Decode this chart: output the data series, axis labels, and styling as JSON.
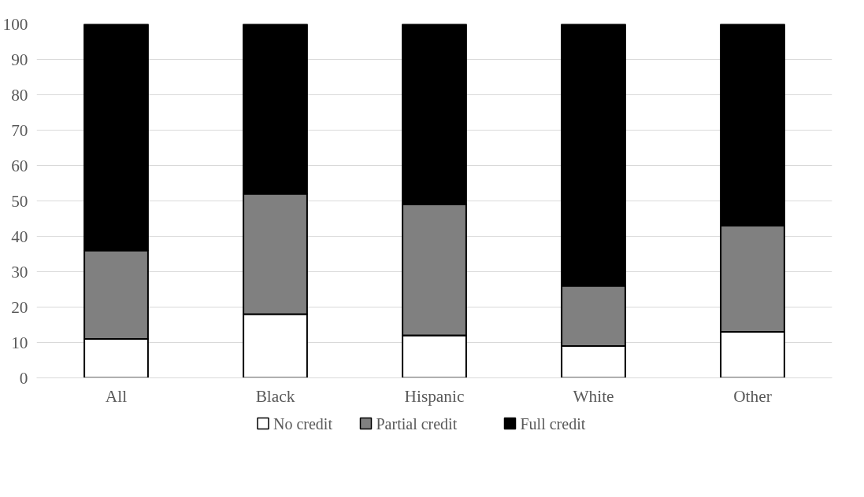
{
  "chart_data": {
    "type": "bar",
    "stacked": true,
    "categories": [
      "All",
      "Black",
      "Hispanic",
      "White",
      "Other"
    ],
    "series": [
      {
        "name": "No credit",
        "color": "#ffffff",
        "values": [
          11,
          18,
          12,
          9,
          13
        ]
      },
      {
        "name": "Partial credit",
        "color": "#808080",
        "values": [
          25,
          34,
          37,
          17,
          30
        ]
      },
      {
        "name": "Full credit",
        "color": "#000000",
        "values": [
          64,
          48,
          51,
          74,
          57
        ]
      }
    ],
    "ylim": [
      0,
      100
    ],
    "yticks": [
      0,
      10,
      20,
      30,
      40,
      50,
      60,
      70,
      80,
      90,
      100
    ],
    "grid": "y",
    "legend": "bottom"
  }
}
